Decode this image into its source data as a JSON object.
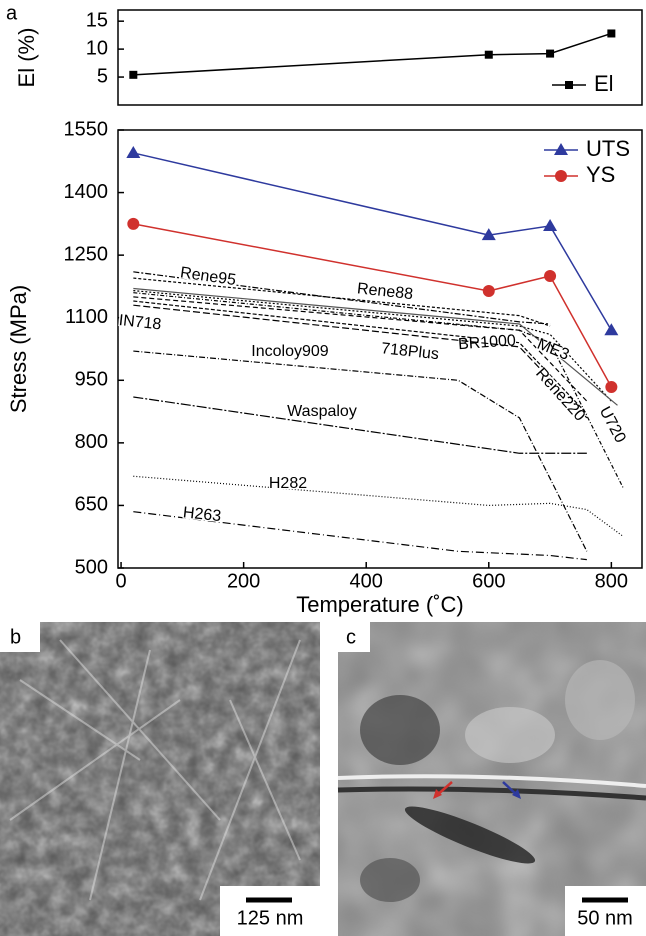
{
  "panel_labels": [
    "a",
    "b",
    "c"
  ],
  "chart_data": [
    {
      "type": "line",
      "ylabel": "El (%)",
      "xlim": [
        -5,
        850
      ],
      "ylim": [
        0,
        17
      ],
      "yticks": [
        5,
        10,
        15
      ],
      "series": [
        {
          "name": "El",
          "color": "#000000",
          "marker": "square",
          "x": [
            20,
            600,
            700,
            800
          ],
          "values": [
            5.4,
            9,
            9.2,
            12.8
          ]
        }
      ]
    },
    {
      "type": "line",
      "xlabel": "Temperature (˚C)",
      "ylabel": "Stress (MPa)",
      "xlim": [
        -5,
        850
      ],
      "ylim": [
        500,
        1550
      ],
      "xticks": [
        0,
        200,
        400,
        600,
        800
      ],
      "yticks": [
        500,
        650,
        800,
        950,
        1100,
        1250,
        1400,
        1550
      ],
      "series": [
        {
          "name": "UTS",
          "color": "#2e3a9e",
          "marker": "triangle",
          "x": [
            20,
            600,
            700,
            800
          ],
          "values": [
            1495,
            1298,
            1320,
            1070
          ]
        },
        {
          "name": "YS",
          "color": "#d0312d",
          "marker": "circle",
          "x": [
            20,
            600,
            700,
            800
          ],
          "values": [
            1325,
            1164,
            1200,
            934
          ]
        },
        {
          "name": "Rene95",
          "color": "#000000",
          "dash": "6 2 2 2",
          "x": [
            20,
            650,
            700
          ],
          "values": [
            1210,
            1090,
            1085
          ]
        },
        {
          "name": "Rene88",
          "color": "#000000",
          "dash": "3 2",
          "x": [
            20,
            650,
            700
          ],
          "values": [
            1195,
            1105,
            1080
          ]
        },
        {
          "name": "IN718",
          "color": "#000000",
          "dash": "5 3",
          "x": [
            20,
            650,
            760
          ],
          "values": [
            1150,
            1070,
            900
          ]
        },
        {
          "name": "Incoloy909",
          "color": "#000000",
          "dash": "6 2 1 2",
          "x": [
            20,
            550,
            650,
            760
          ],
          "values": [
            1020,
            950,
            860,
            540
          ]
        },
        {
          "name": "718Plus",
          "color": "#000000",
          "dash": "4 2",
          "x": [
            20,
            650,
            760
          ],
          "values": [
            1140,
            1040,
            870
          ]
        },
        {
          "name": "BR1000",
          "color": "#000000",
          "dash": "2 2",
          "x": [
            20,
            650,
            700,
            800
          ],
          "values": [
            1165,
            1080,
            1060,
            900
          ]
        },
        {
          "name": "ME3",
          "color": "#555555",
          "dash": "",
          "x": [
            20,
            650,
            810
          ],
          "values": [
            1170,
            1085,
            890
          ]
        },
        {
          "name": "Rene220",
          "color": "#000000",
          "dash": "7 3",
          "x": [
            20,
            650,
            760
          ],
          "values": [
            1130,
            1030,
            860
          ]
        },
        {
          "name": "U720",
          "color": "#000000",
          "dash": "4 2 1 2",
          "x": [
            20,
            650,
            700,
            820
          ],
          "values": [
            1160,
            1070,
            1040,
            690
          ]
        },
        {
          "name": "Waspaloy",
          "color": "#000000",
          "dash": "10 2 2 2",
          "x": [
            20,
            650,
            760
          ],
          "values": [
            910,
            775,
            775
          ]
        },
        {
          "name": "H282",
          "color": "#000000",
          "dash": "1 2",
          "x": [
            20,
            600,
            700,
            760,
            820
          ],
          "values": [
            720,
            650,
            655,
            640,
            575
          ]
        },
        {
          "name": "H263",
          "color": "#000000",
          "dash": "8 3 1 3",
          "x": [
            20,
            550,
            700,
            760
          ],
          "values": [
            635,
            540,
            530,
            520
          ]
        }
      ]
    }
  ],
  "images": [
    {
      "scale_bar": "125 nm"
    },
    {
      "scale_bar": "50 nm"
    }
  ]
}
